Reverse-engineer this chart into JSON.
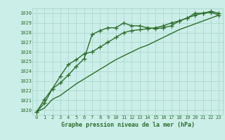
{
  "title": "Graphe pression niveau de la mer (hPa)",
  "x": [
    0,
    1,
    2,
    3,
    4,
    5,
    6,
    7,
    8,
    9,
    10,
    11,
    12,
    13,
    14,
    15,
    16,
    17,
    18,
    19,
    20,
    21,
    22,
    23
  ],
  "line1": [
    1019.8,
    1020.7,
    1022.2,
    1022.8,
    1023.6,
    1024.5,
    1025.3,
    1027.8,
    1028.2,
    1028.5,
    1028.5,
    1029.0,
    1028.7,
    1028.7,
    1028.5,
    1028.4,
    1028.5,
    1028.7,
    1029.2,
    1029.5,
    1030.0,
    1030.0,
    1030.2,
    1030.0
  ],
  "line2": [
    1019.8,
    1021.1,
    1022.2,
    1023.5,
    1024.7,
    1025.2,
    1025.8,
    1026.0,
    1026.5,
    1027.0,
    1027.5,
    1028.0,
    1028.2,
    1028.3,
    1028.4,
    1028.5,
    1028.7,
    1029.0,
    1029.2,
    1029.5,
    1029.8,
    1030.0,
    1030.1,
    1029.8
  ],
  "line3": [
    1019.8,
    1020.2,
    1021.1,
    1021.5,
    1022.1,
    1022.7,
    1023.2,
    1023.7,
    1024.2,
    1024.7,
    1025.2,
    1025.6,
    1026.0,
    1026.4,
    1026.7,
    1027.1,
    1027.5,
    1027.9,
    1028.3,
    1028.6,
    1028.9,
    1029.2,
    1029.5,
    1029.8
  ],
  "ylim": [
    1019.5,
    1030.5
  ],
  "yticks": [
    1020,
    1021,
    1022,
    1023,
    1024,
    1025,
    1026,
    1027,
    1028,
    1029,
    1030
  ],
  "bg_color": "#cceee8",
  "line_color": "#2d6e2d",
  "grid_color": "#aad8d0",
  "title_color": "#2d6e2d",
  "marker": "+",
  "marker_size": 4,
  "linewidth": 1.0,
  "tick_fontsize": 5.0,
  "xlabel_fontsize": 6.0
}
